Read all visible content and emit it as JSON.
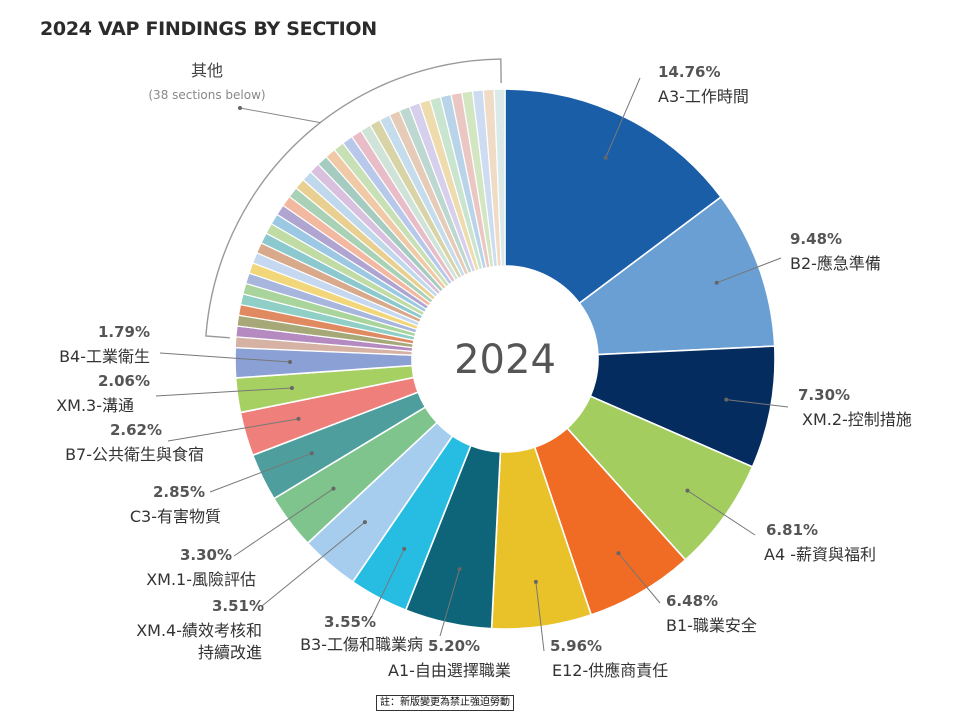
{
  "title": "2024 VAP FINDINGS BY SECTION",
  "center_label": "2024",
  "footnote": "註：新版變更為禁止強迫勞動",
  "chart_data": {
    "type": "pie",
    "style": "donut",
    "title": "2024 VAP FINDINGS BY SECTION",
    "center_text": "2024",
    "slices": [
      {
        "label": "A3-工作時間",
        "value": 14.76,
        "pct_text": "14.76%",
        "color": "#1b5ea8"
      },
      {
        "label": "B2-應急準備",
        "value": 9.48,
        "pct_text": "9.48%",
        "color": "#6a9fd4"
      },
      {
        "label": "XM.2-控制措施",
        "value": 7.3,
        "pct_text": "7.30%",
        "color": "#052c5e"
      },
      {
        "label": "A4 -薪資與福利",
        "value": 6.81,
        "pct_text": "6.81%",
        "color": "#a3cd5f"
      },
      {
        "label": "B1-職業安全",
        "value": 6.48,
        "pct_text": "6.48%",
        "color": "#f06b23"
      },
      {
        "label": "E12-供應商責任",
        "value": 5.96,
        "pct_text": "5.96%",
        "color": "#e9c22a"
      },
      {
        "label": "A1-自由選擇職業",
        "value": 5.2,
        "pct_text": "5.20%",
        "color": "#0e6479"
      },
      {
        "label": "B3-工傷和職業病",
        "value": 3.55,
        "pct_text": "3.55%",
        "color": "#27bde3"
      },
      {
        "label": "XM.4-績效考核和\n持續改進",
        "value": 3.51,
        "pct_text": "3.51%",
        "color": "#a7cdee"
      },
      {
        "label": "XM.1-風險評估",
        "value": 3.3,
        "pct_text": "3.30%",
        "color": "#7ec48c"
      },
      {
        "label": "C3-有害物質",
        "value": 2.85,
        "pct_text": "2.85%",
        "color": "#4e9e9e"
      },
      {
        "label": "B7-公共衛生與食宿",
        "value": 2.62,
        "pct_text": "2.62%",
        "color": "#ef7f7b"
      },
      {
        "label": "XM.3-溝通",
        "value": 2.06,
        "pct_text": "2.06%",
        "color": "#a7d063"
      },
      {
        "label": "B4-工業衛生",
        "value": 1.79,
        "pct_text": "1.79%",
        "color": "#8ba0d5"
      }
    ],
    "other_group": {
      "label": "其他",
      "sublabel": "(38 sections below)",
      "count": 38,
      "colors": [
        "#d5b2a4",
        "#b48ac0",
        "#a7a878",
        "#e08a62",
        "#8fcfc5",
        "#a9d59c",
        "#a8b6de",
        "#f2d77a",
        "#c5d8f0",
        "#d8a98a",
        "#8cc9cf",
        "#c1dba5",
        "#9cc8e3",
        "#b0a4d1",
        "#f2b9a0",
        "#a9d1b6",
        "#e9d090",
        "#bfd8ec",
        "#d8c0de",
        "#a6ccc2",
        "#f0c9a6",
        "#c8e0b6",
        "#b8c8ea",
        "#e8bdc8",
        "#cfe3d9",
        "#d9d3a8",
        "#c4dcec",
        "#e6cbb8",
        "#bcd8d0",
        "#d6d0ec",
        "#eedcae",
        "#c9e4cf",
        "#b9d3e8",
        "#ebc7c4",
        "#d3e6c2",
        "#cddcf0",
        "#f0dcc6",
        "#dbe9e9"
      ]
    }
  }
}
